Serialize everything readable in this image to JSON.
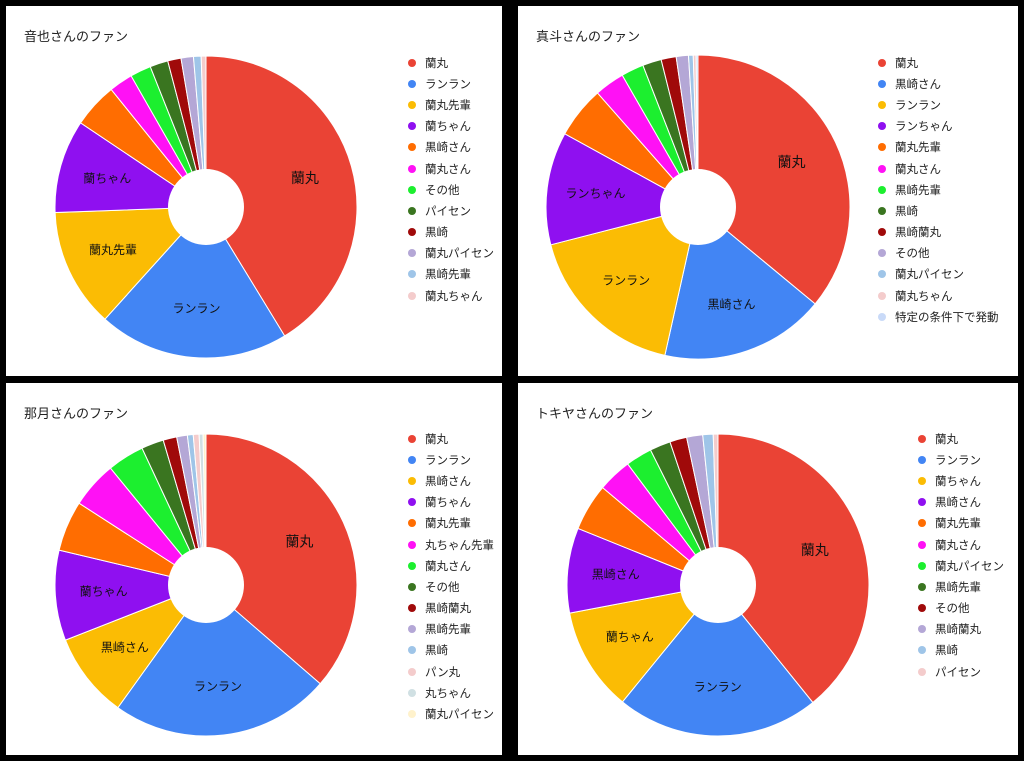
{
  "chart_data": [
    {
      "type": "pie",
      "title": "音也さんのファン",
      "legend_position": "right",
      "categories": [
        "蘭丸",
        "ランラン",
        "蘭丸先輩",
        "蘭ちゃん",
        "黒崎さん",
        "蘭丸さん",
        "その他",
        "パイセン",
        "黒崎",
        "蘭丸パイセン",
        "黒崎先輩",
        "蘭丸ちゃん"
      ],
      "values": [
        40.5,
        20.0,
        12.5,
        9.8,
        4.7,
        2.5,
        2.2,
        1.9,
        1.4,
        1.3,
        0.8,
        0.5
      ],
      "colors": [
        "#EA4335",
        "#4285F4",
        "#FBBC04",
        "#8F10F0",
        "#FF6D01",
        "#FF11F5",
        "#1CEF2F",
        "#3A7520",
        "#A00A0A",
        "#B4A7D6",
        "#9FC5E8",
        "#F4CCCC"
      ],
      "slice_labels": [
        "蘭丸",
        "ランラン",
        "蘭丸先輩",
        "蘭ちゃん",
        "",
        "",
        "",
        "",
        "",
        "",
        "",
        ""
      ]
    },
    {
      "type": "pie",
      "title": "真斗さんのファン",
      "legend_position": "right",
      "categories": [
        "蘭丸",
        "黒崎さん",
        "ランラン",
        "ランちゃん",
        "蘭丸先輩",
        "蘭丸さん",
        "黒崎先輩",
        "黒崎",
        "黒崎蘭丸",
        "その他",
        "蘭丸パイセン",
        "蘭丸ちゃん",
        "特定の条件下で発動"
      ],
      "values": [
        36.0,
        17.5,
        17.5,
        12.0,
        5.5,
        3.2,
        2.4,
        2.0,
        1.6,
        1.3,
        0.5,
        0.3,
        0.2
      ],
      "colors": [
        "#EA4335",
        "#4285F4",
        "#FBBC04",
        "#8F10F0",
        "#FF6D01",
        "#FF11F5",
        "#1CEF2F",
        "#3A7520",
        "#A00A0A",
        "#B4A7D6",
        "#9FC5E8",
        "#F4CCCC",
        "#C9DAF8"
      ],
      "slice_labels": [
        "蘭丸",
        "黒崎さん",
        "ランラン",
        "ランちゃん",
        "",
        "",
        "",
        "",
        "",
        "",
        "",
        "",
        ""
      ]
    },
    {
      "type": "pie",
      "title": "那月さんのファン",
      "legend_position": "right",
      "categories": [
        "蘭丸",
        "ランラン",
        "黒崎さん",
        "蘭ちゃん",
        "蘭丸先輩",
        "丸ちゃん先輩",
        "蘭丸さん",
        "その他",
        "黒崎蘭丸",
        "黒崎先輩",
        "黒崎",
        "パン丸",
        "丸ちゃん",
        "蘭丸パイセン"
      ],
      "values": [
        35.0,
        22.7,
        8.8,
        9.3,
        5.2,
        4.8,
        3.8,
        2.3,
        1.4,
        1.1,
        0.6,
        0.6,
        0.4,
        0.3
      ],
      "colors": [
        "#EA4335",
        "#4285F4",
        "#FBBC04",
        "#8F10F0",
        "#FF6D01",
        "#FF11F5",
        "#1CEF2F",
        "#3A7520",
        "#A00A0A",
        "#B4A7D6",
        "#9FC5E8",
        "#F4CCCC",
        "#D0E0E3",
        "#FFF2CC"
      ],
      "slice_labels": [
        "蘭丸",
        "ランラン",
        "黒崎さん",
        "蘭ちゃん",
        "",
        "",
        "",
        "",
        "",
        "",
        "",
        "",
        "",
        ""
      ]
    },
    {
      "type": "pie",
      "title": "トキヤさんのファン",
      "legend_position": "right",
      "categories": [
        "蘭丸",
        "ランラン",
        "蘭ちゃん",
        "黒崎さん",
        "蘭丸先輩",
        "蘭丸さん",
        "蘭丸パイセン",
        "黒崎先輩",
        "その他",
        "黒崎蘭丸",
        "黒崎",
        "パイセン"
      ],
      "values": [
        38.8,
        21.5,
        11.0,
        9.0,
        5.0,
        3.6,
        2.8,
        2.2,
        1.8,
        1.7,
        1.1,
        0.5
      ],
      "colors": [
        "#EA4335",
        "#4285F4",
        "#FBBC04",
        "#8F10F0",
        "#FF6D01",
        "#FF11F5",
        "#1CEF2F",
        "#3A7520",
        "#A00A0A",
        "#B4A7D6",
        "#9FC5E8",
        "#F4CCCC"
      ],
      "slice_labels": [
        "蘭丸",
        "ランラン",
        "蘭ちゃん",
        "黒崎さん",
        "",
        "",
        "",
        "",
        "",
        "",
        "",
        ""
      ]
    }
  ]
}
